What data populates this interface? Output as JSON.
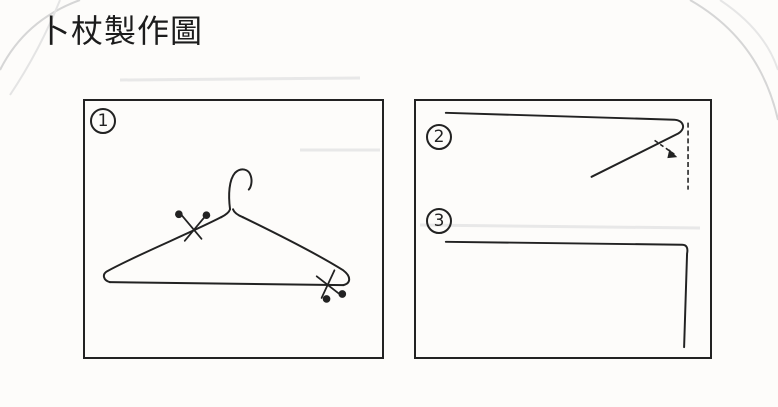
{
  "title": "卜杖製作圖",
  "steps": [
    {
      "label": "1"
    },
    {
      "label": "2"
    },
    {
      "label": "3"
    }
  ],
  "colors": {
    "ink": "#222222",
    "paper": "#fdfcfa",
    "smudge": "#dcdcdc"
  }
}
